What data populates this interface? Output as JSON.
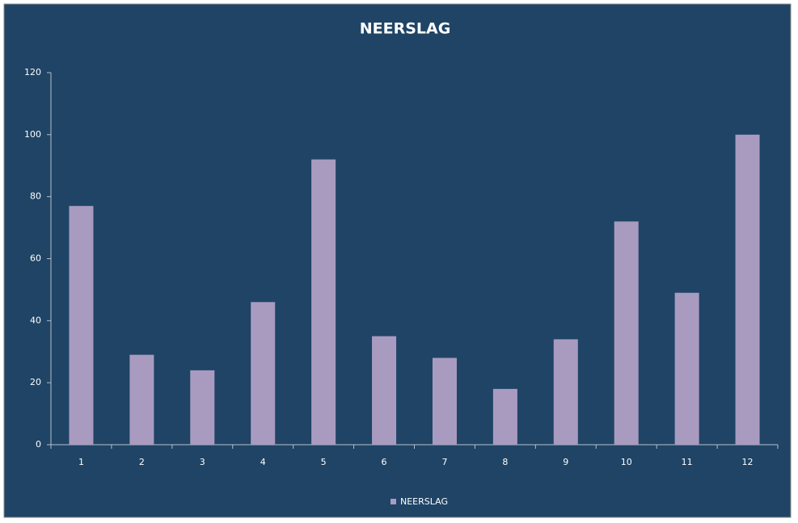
{
  "chart_data": {
    "type": "bar",
    "title": "NEERSLAG",
    "categories": [
      "1",
      "2",
      "3",
      "4",
      "5",
      "6",
      "7",
      "8",
      "9",
      "10",
      "11",
      "12"
    ],
    "series": [
      {
        "name": "NEERSLAG",
        "color": "#a99bc0",
        "values": [
          77,
          29,
          24,
          46,
          92,
          35,
          28,
          18,
          34,
          72,
          49,
          100
        ]
      }
    ],
    "ylim": [
      0,
      120
    ],
    "yticks": [
      0,
      20,
      40,
      60,
      80,
      100,
      120
    ],
    "grid": false,
    "legend": "bottom"
  }
}
